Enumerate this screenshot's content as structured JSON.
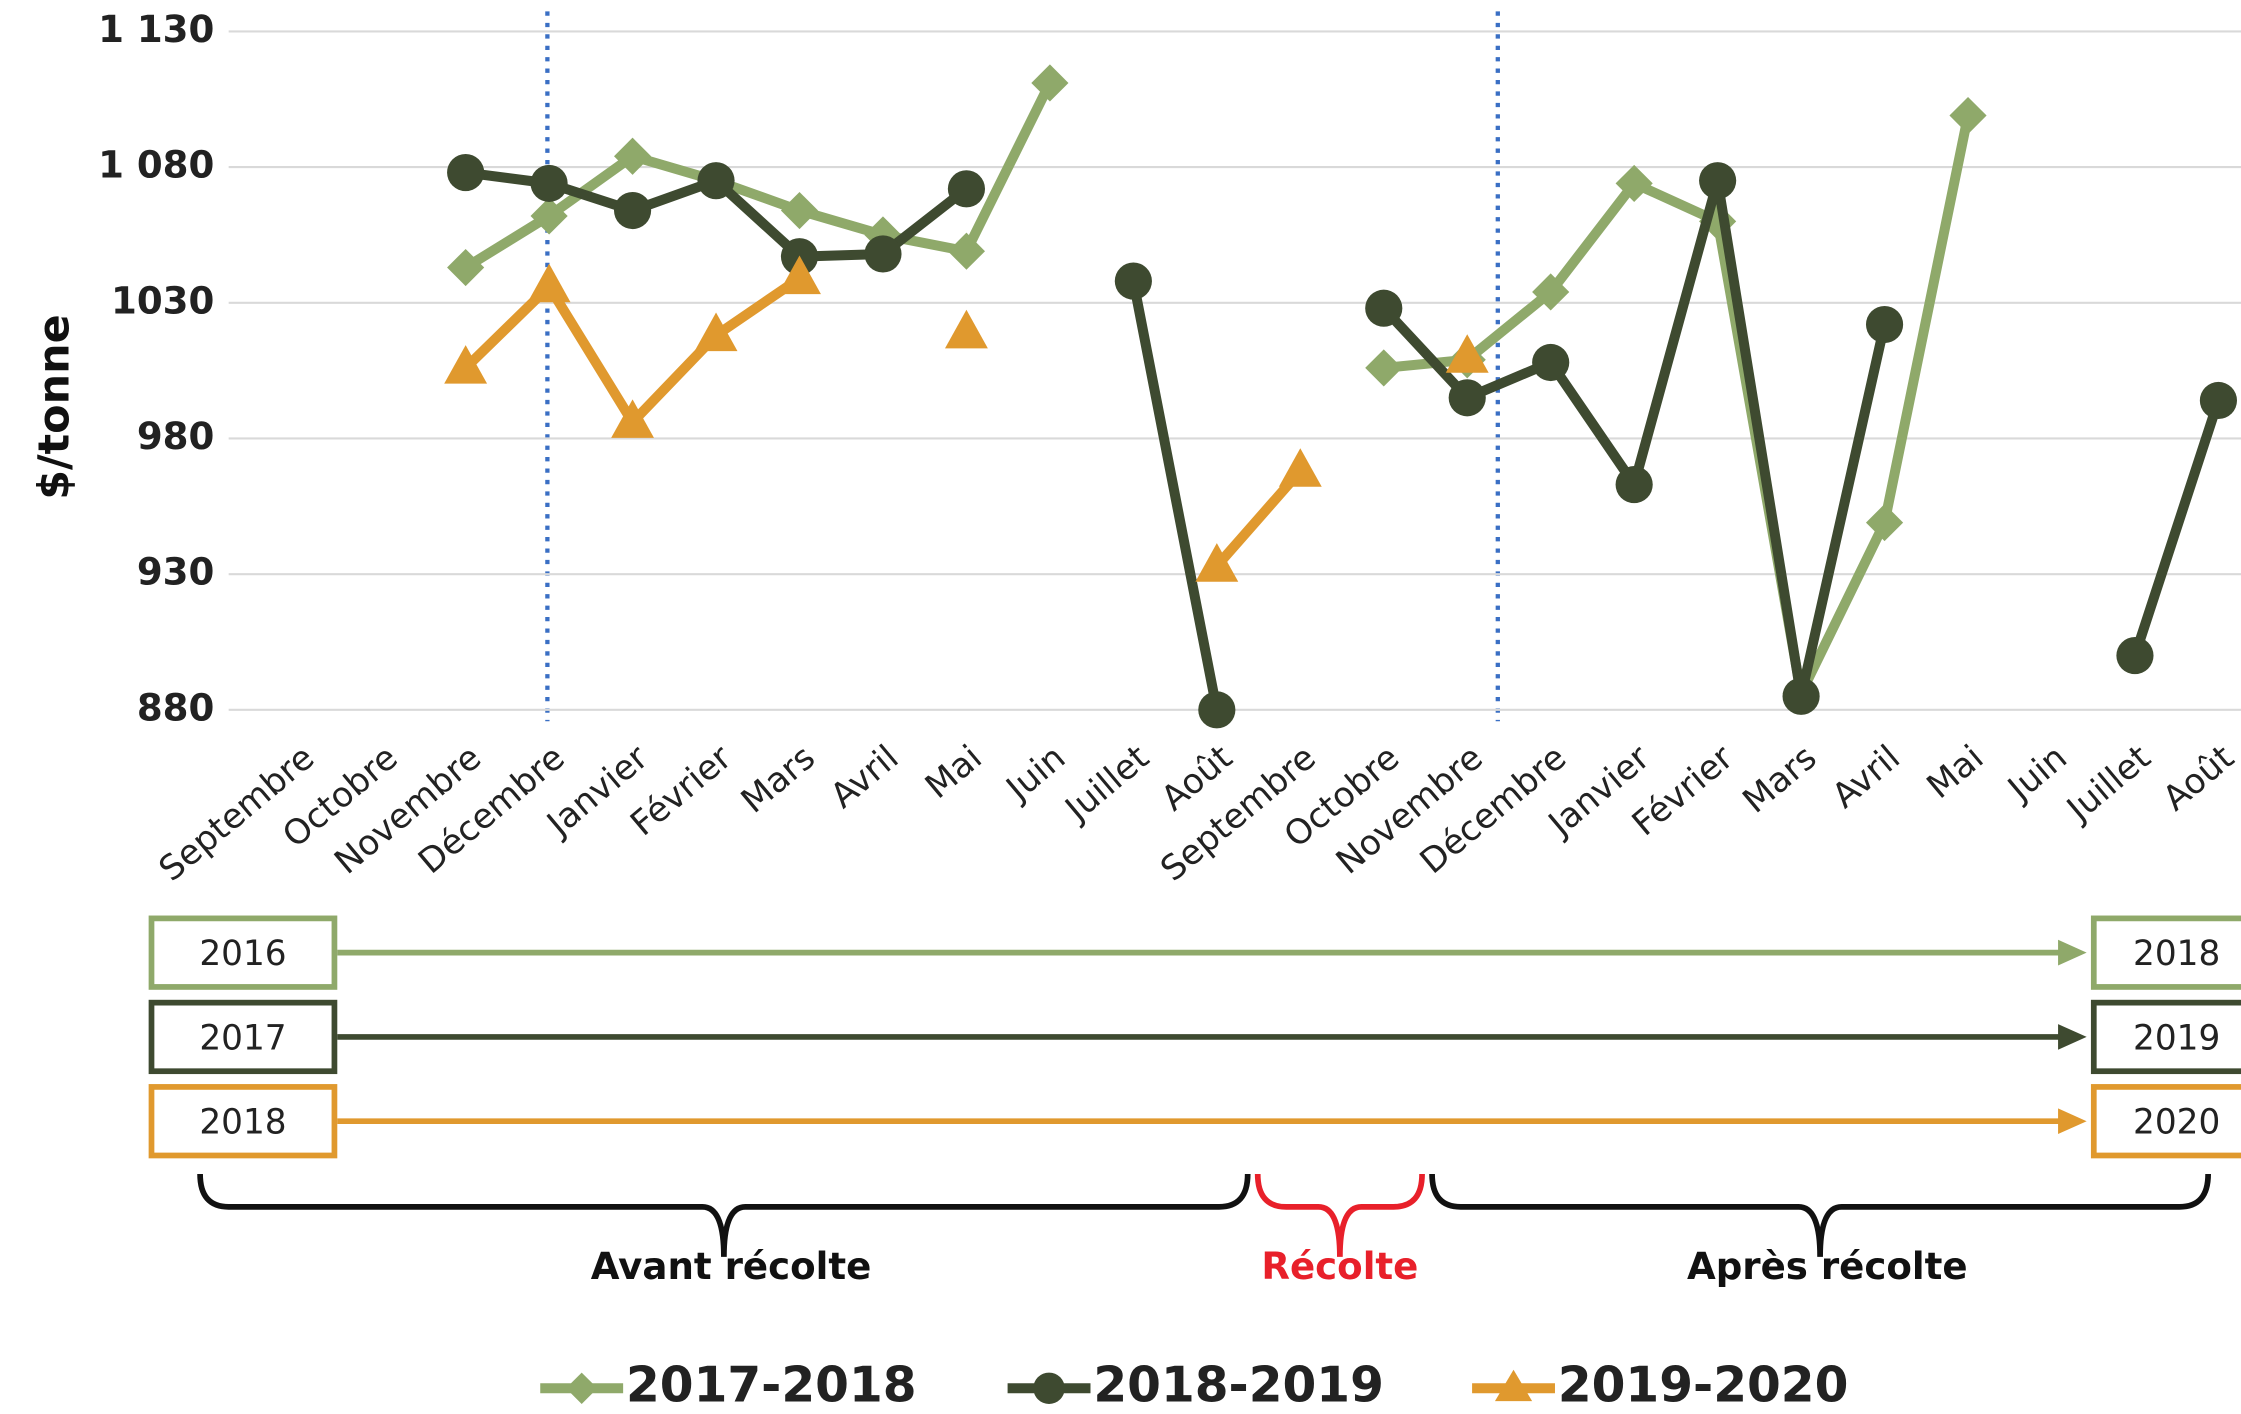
{
  "chart_data": {
    "type": "line",
    "y_label": "$/tonne",
    "categories": [
      "Septembre",
      "Octobre",
      "Novembre",
      "Décembre",
      "Janvier",
      "Février",
      "Mars",
      "Avril",
      "Mai",
      "Juin",
      "Juillet",
      "Août",
      "Septembre",
      "Octobre",
      "Novembre",
      "Décembre",
      "Janvier",
      "Février",
      "Mars",
      "Avril",
      "Mai",
      "Juin",
      "Juillet",
      "Août"
    ],
    "series": [
      {
        "name": "2017-2018",
        "color": "#8fa96a",
        "marker": "diamond",
        "values": [
          null,
          null,
          1043,
          1062,
          1084,
          1075,
          1064,
          1055,
          1049,
          1111,
          null,
          null,
          null,
          1006,
          1009,
          1034,
          1074,
          1060,
          886,
          949,
          1099,
          null,
          null,
          null
        ]
      },
      {
        "name": "2018-2019",
        "color": "#3e4a30",
        "marker": "circle",
        "values": [
          null,
          null,
          1078,
          1074,
          1064,
          1075,
          1047,
          1048,
          1072,
          null,
          1038,
          880,
          null,
          1028,
          995,
          1008,
          963,
          1075,
          885,
          1022,
          null,
          null,
          900,
          994
        ]
      },
      {
        "name": "2019-2020",
        "color": "#e0992e",
        "marker": "triangle",
        "values": [
          null,
          null,
          1006,
          1036,
          986,
          1018,
          1039,
          null,
          1019,
          null,
          null,
          933,
          968,
          null,
          1010,
          null,
          null,
          null,
          null,
          null,
          null,
          null,
          null,
          null
        ]
      }
    ],
    "ylim": [
      880,
      1130
    ],
    "yticks": [
      880,
      930,
      980,
      1030,
      {
        "value": 1080,
        "label": "1 080"
      },
      {
        "value": 1130,
        "label": "1 130"
      }
    ],
    "grid": true,
    "legend": "bottom",
    "periods": [
      {
        "start": "2016",
        "end": "2018",
        "color": "#8fa96a"
      },
      {
        "start": "2017",
        "end": "2019",
        "color": "#3e4a30"
      },
      {
        "start": "2018",
        "end": "2020",
        "color": "#e0992e"
      }
    ],
    "phases": [
      {
        "label": "Avant récolte",
        "color": "#111111"
      },
      {
        "label": "Récolte",
        "color": "#e8202a"
      },
      {
        "label": "Après récolte",
        "color": "#111111"
      }
    ]
  }
}
